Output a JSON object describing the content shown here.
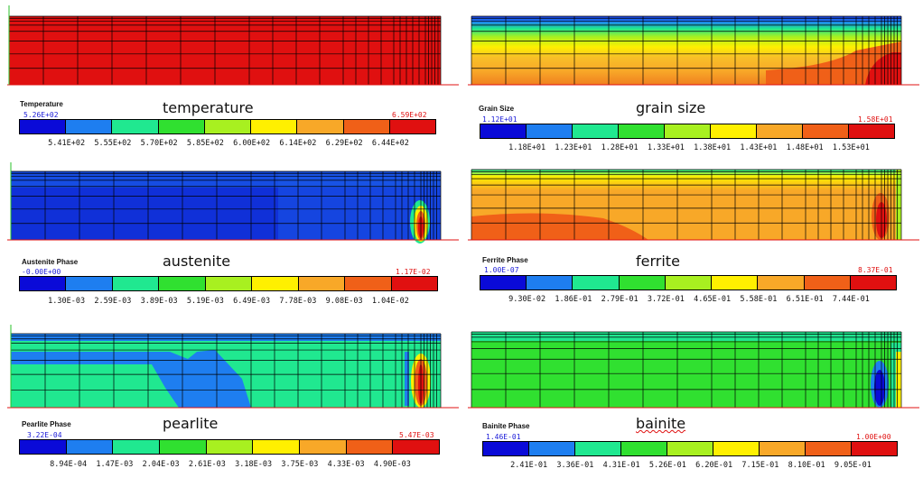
{
  "colorscale": [
    "#0a0ad8",
    "#1e7ef0",
    "#20e890",
    "#30e030",
    "#a8f020",
    "#fff000",
    "#f8a828",
    "#f06018",
    "#e01010"
  ],
  "panels": [
    {
      "id": "temperature",
      "caption": "temperature",
      "legend_title": "Temperature",
      "min": "5.26E+02",
      "max": "6.59E+02",
      "ticks": [
        "5.41E+02",
        "5.55E+02",
        "5.70E+02",
        "5.85E+02",
        "6.00E+02",
        "6.14E+02",
        "6.29E+02",
        "6.44E+02"
      ],
      "caption_underline": false
    },
    {
      "id": "grain-size",
      "caption": "grain size",
      "legend_title": "Grain Size",
      "min": "1.12E+01",
      "max": "1.58E+01",
      "ticks": [
        "1.18E+01",
        "1.23E+01",
        "1.28E+01",
        "1.33E+01",
        "1.38E+01",
        "1.43E+01",
        "1.48E+01",
        "1.53E+01"
      ],
      "caption_underline": false
    },
    {
      "id": "austenite",
      "caption": "austenite",
      "legend_title": "Austenite Phase",
      "min": "-0.00E+00",
      "max": "1.17E-02",
      "ticks": [
        "1.30E-03",
        "2.59E-03",
        "3.89E-03",
        "5.19E-03",
        "6.49E-03",
        "7.78E-03",
        "9.08E-03",
        "1.04E-02"
      ],
      "caption_underline": false
    },
    {
      "id": "ferrite",
      "caption": "ferrite",
      "legend_title": "Ferrite Phase",
      "min": "1.00E-07",
      "max": "8.37E-01",
      "ticks": [
        "9.30E-02",
        "1.86E-01",
        "2.79E-01",
        "3.72E-01",
        "4.65E-01",
        "5.58E-01",
        "6.51E-01",
        "7.44E-01"
      ],
      "caption_underline": false
    },
    {
      "id": "pearlite",
      "caption": "pearlite",
      "legend_title": "Pearlite Phase",
      "min": "3.22E-04",
      "max": "5.47E-03",
      "ticks": [
        "8.94E-04",
        "1.47E-03",
        "2.04E-03",
        "2.61E-03",
        "3.18E-03",
        "3.75E-03",
        "4.33E-03",
        "4.90E-03"
      ],
      "caption_underline": false
    },
    {
      "id": "bainite",
      "caption": "bainite",
      "legend_title": "Bainite Phase",
      "min": "1.46E-01",
      "max": "1.00E+00",
      "ticks": [
        "2.41E-01",
        "3.36E-01",
        "4.31E-01",
        "5.26E-01",
        "6.20E-01",
        "7.15E-01",
        "8.10E-01",
        "9.05E-01"
      ],
      "caption_underline": true
    }
  ]
}
